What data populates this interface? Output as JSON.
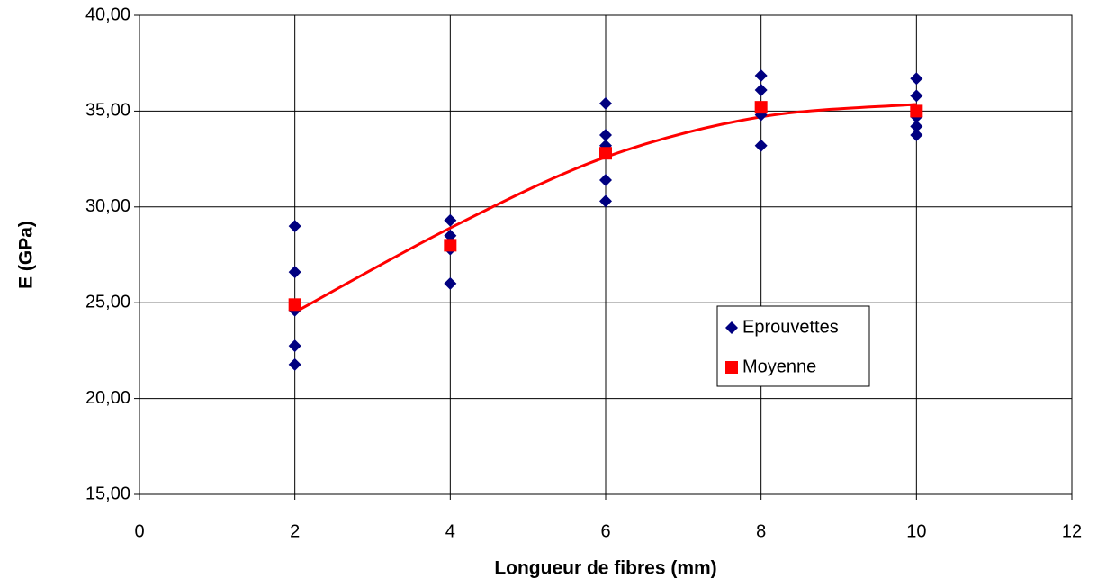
{
  "chart_data": {
    "type": "scatter",
    "xlabel": "Longueur de fibres (mm)",
    "ylabel": "E (GPa)",
    "xlim": [
      0,
      12
    ],
    "xticks": [
      0,
      2,
      4,
      6,
      8,
      10,
      12
    ],
    "ylim": [
      15,
      40
    ],
    "yticks": [
      {
        "value": 15,
        "label": "15,00"
      },
      {
        "value": 20,
        "label": "20,00"
      },
      {
        "value": 25,
        "label": "25,00"
      },
      {
        "value": 30,
        "label": "30,00"
      },
      {
        "value": 35,
        "label": "35,00"
      },
      {
        "value": 40,
        "label": "40,00"
      }
    ],
    "grid": true,
    "legend": "center-right",
    "series": [
      {
        "name": "Eprouvettes",
        "color": "#000080",
        "marker": "diamond",
        "x": [
          2,
          2,
          2,
          2,
          2,
          4,
          4,
          4,
          4,
          6,
          6,
          6,
          6,
          6,
          8,
          8,
          8,
          8,
          10,
          10,
          10,
          10,
          10
        ],
        "values": [
          29.0,
          26.6,
          24.6,
          22.75,
          21.77,
          29.3,
          28.5,
          27.8,
          26.0,
          35.4,
          33.75,
          33.2,
          31.4,
          30.3,
          36.85,
          36.1,
          34.8,
          33.2,
          36.7,
          35.8,
          34.7,
          34.2,
          33.75
        ]
      },
      {
        "name": "Moyenne",
        "color": "#ff0000",
        "marker": "square",
        "x": [
          2,
          4,
          6,
          8,
          10
        ],
        "values": [
          24.9,
          28.0,
          32.8,
          35.2,
          35.0
        ]
      }
    ],
    "trendline": {
      "color": "#ff0000",
      "x": [
        2,
        4,
        6,
        8,
        10
      ],
      "values": [
        24.5,
        28.9,
        32.6,
        34.7,
        35.35
      ]
    }
  }
}
